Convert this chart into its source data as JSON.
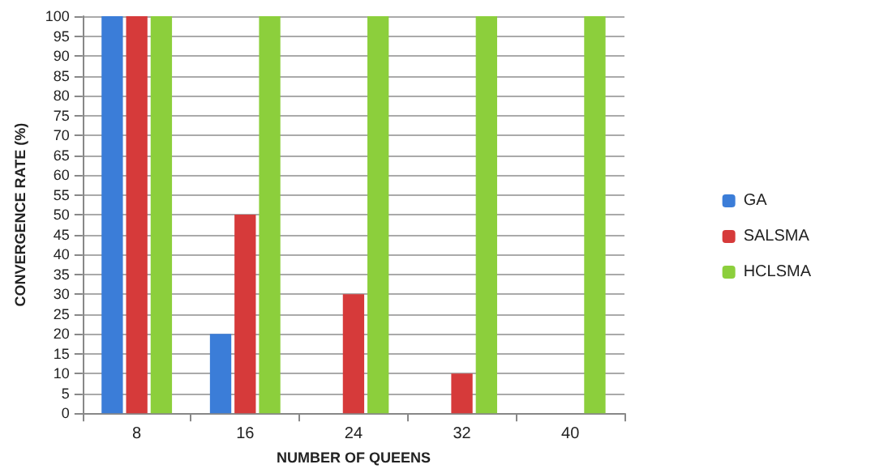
{
  "chart_data": {
    "type": "bar",
    "xlabel": "NUMBER OF QUEENS",
    "ylabel": "CONVERGENCE RATE (%)",
    "categories": [
      "8",
      "16",
      "24",
      "32",
      "40"
    ],
    "series": [
      {
        "name": "GA",
        "color": "#3b7dd8",
        "values": [
          100,
          20,
          0,
          0,
          0
        ]
      },
      {
        "name": "SALSMA",
        "color": "#d63a3a",
        "values": [
          100,
          50,
          30,
          10,
          0
        ]
      },
      {
        "name": "HCLSMA",
        "color": "#8ccf3c",
        "values": [
          100,
          100,
          100,
          100,
          100
        ]
      }
    ],
    "ylim": [
      0,
      100
    ],
    "yticks": [
      0,
      5,
      10,
      15,
      20,
      25,
      30,
      35,
      40,
      45,
      50,
      55,
      60,
      65,
      70,
      75,
      80,
      85,
      90,
      95,
      100
    ],
    "grid": "y",
    "legend": "right"
  }
}
